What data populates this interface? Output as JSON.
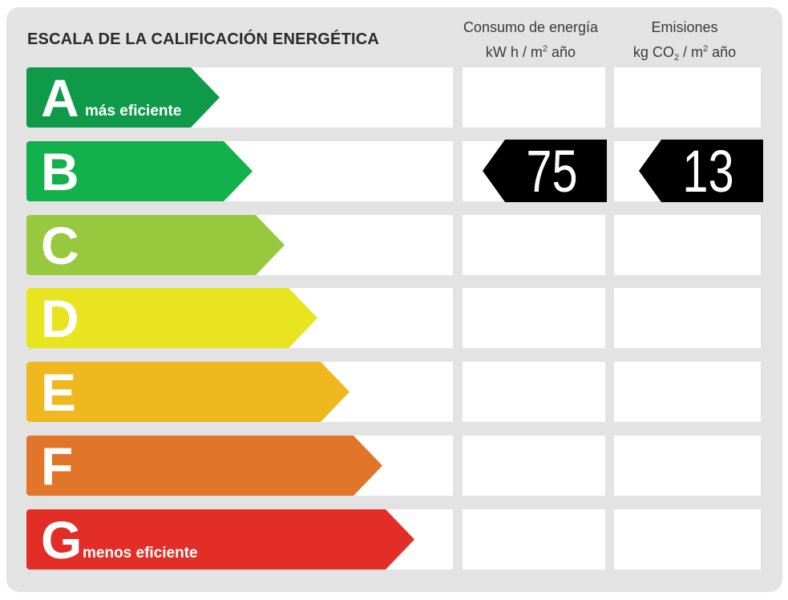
{
  "title": "ESCALA DE LA CALIFICACIÓN ENERGÉTICA",
  "columns": {
    "energy": {
      "line1": "Consumo de energía",
      "unit_a": "kW h  / m",
      "unit_sup": "2",
      "unit_b": " año"
    },
    "emissions": {
      "line1": "Emisiones",
      "unit_a": "kg CO",
      "unit_sub": "2",
      "unit_mid": "  / m",
      "unit_sup": "2",
      "unit_b": " año"
    }
  },
  "ratings": [
    {
      "letter": "A",
      "note": "más eficiente",
      "color": "#0e9a48"
    },
    {
      "letter": "B",
      "note": "",
      "color": "#13b14b"
    },
    {
      "letter": "C",
      "note": "",
      "color": "#96c93d"
    },
    {
      "letter": "D",
      "note": "",
      "color": "#e8e41f"
    },
    {
      "letter": "E",
      "note": "",
      "color": "#efb81e"
    },
    {
      "letter": "F",
      "note": "",
      "color": "#e1762a"
    },
    {
      "letter": "G",
      "note": "menos eficiente",
      "color": "#e32d27"
    }
  ],
  "current": {
    "rating": "B",
    "energy_value": "75",
    "emissions_value": "13"
  }
}
